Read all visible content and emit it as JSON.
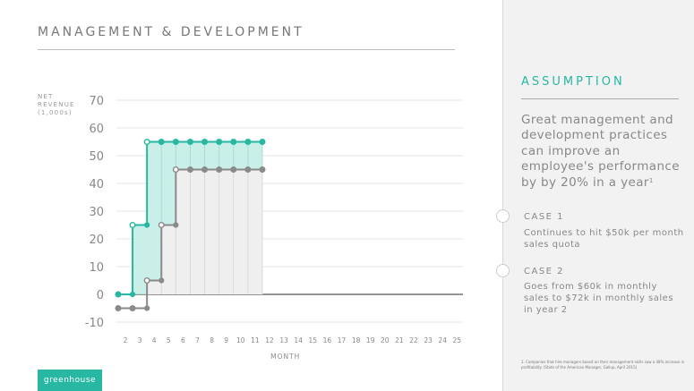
{
  "slide": {
    "title": "MANAGEMENT & DEVELOPMENT",
    "logo": "greenhouse"
  },
  "sidebar": {
    "heading": "ASSUMPTION",
    "text": "Great management and development practices can improve an employee's performance by by 20% in a year",
    "text_sup": "1",
    "cases": [
      {
        "title": "CASE 1",
        "text": "Continues to hit $50k per month sales quota"
      },
      {
        "title": "CASE 2",
        "text": "Goes from $60k in monthly sales to $72k in monthly sales in year 2"
      }
    ],
    "footnote": "1. Companies that hire managers based on their management skills saw a 48% increase in profitability. (State of the American Manager, Gallup, April 2015)"
  },
  "chart_data": {
    "type": "line",
    "title": "",
    "ylabel": "NET REVENUE (1,000s)",
    "xlabel": "MONTH",
    "xlim": [
      2,
      25
    ],
    "ylim": [
      -10,
      70
    ],
    "yticks": [
      70,
      60,
      50,
      40,
      30,
      20,
      10,
      0,
      -10
    ],
    "xticks": [
      2,
      3,
      4,
      5,
      6,
      7,
      8,
      9,
      10,
      11,
      12,
      13,
      14,
      15,
      16,
      17,
      18,
      19,
      20,
      21,
      22,
      23,
      24,
      25
    ],
    "grid": true,
    "style": "step",
    "series": [
      {
        "color": "#27b7a3",
        "fill": "#bfece4",
        "x": [
          1.5,
          2.5,
          3.5,
          4.5,
          5.5,
          6.5,
          7.5,
          8.5,
          9.5,
          10.5,
          11.5
        ],
        "values": [
          0,
          25,
          55,
          55,
          55,
          55,
          55,
          55,
          55,
          55,
          55
        ]
      },
      {
        "color": "#8a8a8a",
        "fill": "#efefef",
        "x": [
          1.5,
          2.5,
          3.5,
          4.5,
          5.5,
          6.5,
          7.5,
          8.5,
          9.5,
          10.5,
          11.5
        ],
        "values": [
          -5,
          -5,
          5,
          25,
          45,
          45,
          45,
          45,
          45,
          45,
          45
        ]
      }
    ]
  }
}
